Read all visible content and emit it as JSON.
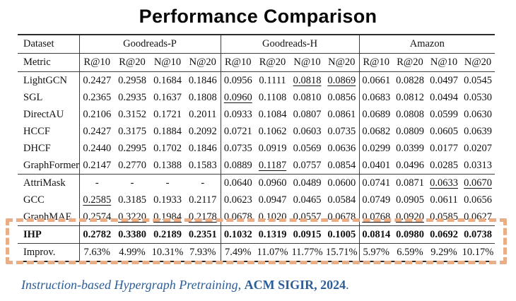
{
  "title": "Performance Comparison",
  "table": {
    "corner": {
      "dataset": "Dataset",
      "metric": "Metric"
    },
    "groups": [
      {
        "name": "Goodreads-P"
      },
      {
        "name": "Goodreads-H"
      },
      {
        "name": "Amazon"
      }
    ],
    "metrics": [
      "R@10",
      "R@20",
      "N@10",
      "N@20"
    ],
    "rows": [
      {
        "model": "LightGCN",
        "bold": false,
        "underline": [
          6,
          7
        ],
        "values": [
          "0.2427",
          "0.2958",
          "0.1684",
          "0.1846",
          "0.0956",
          "0.1111",
          "0.0818",
          "0.0869",
          "0.0661",
          "0.0828",
          "0.0497",
          "0.0545"
        ]
      },
      {
        "model": "SGL",
        "bold": false,
        "underline": [
          4
        ],
        "values": [
          "0.2365",
          "0.2935",
          "0.1637",
          "0.1808",
          "0.0960",
          "0.1108",
          "0.0810",
          "0.0856",
          "0.0683",
          "0.0812",
          "0.0494",
          "0.0530"
        ]
      },
      {
        "model": "DirectAU",
        "bold": false,
        "underline": [],
        "values": [
          "0.2106",
          "0.3152",
          "0.1721",
          "0.2011",
          "0.0933",
          "0.1084",
          "0.0807",
          "0.0861",
          "0.0689",
          "0.0808",
          "0.0599",
          "0.0630"
        ]
      },
      {
        "model": "HCCF",
        "bold": false,
        "underline": [],
        "values": [
          "0.2427",
          "0.3175",
          "0.1884",
          "0.2092",
          "0.0721",
          "0.1062",
          "0.0603",
          "0.0735",
          "0.0682",
          "0.0809",
          "0.0605",
          "0.0639"
        ]
      },
      {
        "model": "DHCF",
        "bold": false,
        "underline": [],
        "values": [
          "0.2440",
          "0.2995",
          "0.1702",
          "0.1846",
          "0.0735",
          "0.0919",
          "0.0569",
          "0.0636",
          "0.0299",
          "0.0399",
          "0.0177",
          "0.0207"
        ]
      },
      {
        "model": "GraphFormers",
        "bold": false,
        "underline": [
          5
        ],
        "values": [
          "0.2147",
          "0.2770",
          "0.1388",
          "0.1583",
          "0.0889",
          "0.1187",
          "0.0757",
          "0.0854",
          "0.0401",
          "0.0496",
          "0.0285",
          "0.0313"
        ]
      },
      {
        "model": "AttriMask",
        "bold": false,
        "underline": [
          10,
          11
        ],
        "values": [
          "-",
          "-",
          "-",
          "-",
          "0.0640",
          "0.0960",
          "0.0489",
          "0.0600",
          "0.0741",
          "0.0871",
          "0.0633",
          "0.0670"
        ]
      },
      {
        "model": "GCC",
        "bold": false,
        "underline": [
          0
        ],
        "values": [
          "0.2585",
          "0.3185",
          "0.1933",
          "0.2117",
          "0.0623",
          "0.0947",
          "0.0465",
          "0.0584",
          "0.0749",
          "0.0905",
          "0.0611",
          "0.0656"
        ]
      },
      {
        "model": "GraphMAE",
        "bold": false,
        "underline": [
          1,
          2,
          3,
          8,
          9
        ],
        "values": [
          "0.2574",
          "0.3220",
          "0.1984",
          "0.2178",
          "0.0678",
          "0.1020",
          "0.0557",
          "0.0678",
          "0.0768",
          "0.0920",
          "0.0585",
          "0.0627"
        ]
      },
      {
        "model": "IHP",
        "bold": true,
        "underline": [],
        "values": [
          "0.2782",
          "0.3380",
          "0.2189",
          "0.2351",
          "0.1032",
          "0.1319",
          "0.0915",
          "0.1005",
          "0.0814",
          "0.0980",
          "0.0692",
          "0.0738"
        ]
      },
      {
        "model": "Improv.",
        "bold": false,
        "underline": [],
        "values": [
          "7.63%",
          "4.99%",
          "10.31%",
          "7.93%",
          "7.49%",
          "11.07%",
          "11.77%",
          "15.71%",
          "5.97%",
          "6.59%",
          "9.29%",
          "10.17%"
        ]
      }
    ],
    "rule_after_rows": [
      5,
      8,
      9
    ]
  },
  "highlight": {
    "color": "#e9ae85"
  },
  "caption": {
    "italic_part": "Instruction-based Hypergraph Pretraining",
    "separator": ", ",
    "bold_part": "ACM SIGIR, 2024",
    "period": ".",
    "color": "#2b5e99"
  }
}
